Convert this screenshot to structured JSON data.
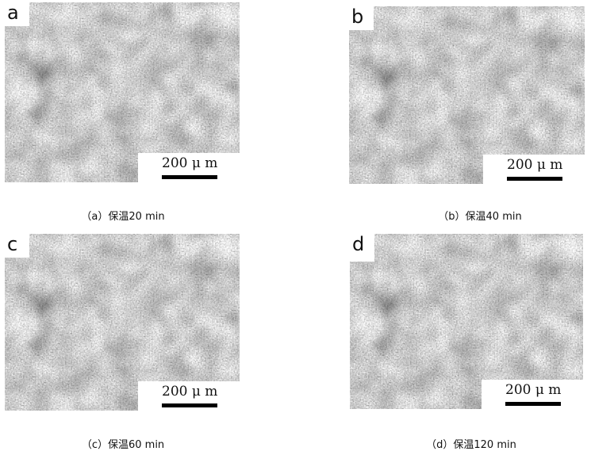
{
  "panels": [
    {
      "label": "a",
      "scale": "200 μ m",
      "caption": "（a）保温20 min"
    },
    {
      "label": "b",
      "scale": "200 μ m",
      "caption": "（b）保温40 min"
    },
    {
      "label": "c",
      "scale": "200 μ m",
      "caption": "（c）保温60 min"
    },
    {
      "label": "d",
      "scale": "200 μ m",
      "caption": "（d）保温120 min"
    }
  ]
}
